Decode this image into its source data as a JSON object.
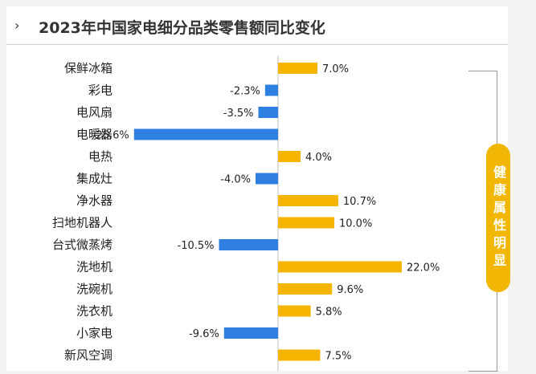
{
  "header": {
    "chevron": "›"
  },
  "badge": {
    "text": "健康属性明显",
    "color": "#f2b705"
  },
  "colors": {
    "positive": "#f4b400",
    "negative": "#2f7fe0"
  },
  "chart_data": {
    "type": "bar",
    "orientation": "horizontal",
    "title": "2023年中国家电细分品类零售额同比变化",
    "categories": [
      "保鲜冰箱",
      "彩电",
      "电风扇",
      "电暖器",
      "电热",
      "集成灶",
      "净水器",
      "扫地机器人",
      "台式微蒸烤",
      "洗地机",
      "洗碗机",
      "洗衣机",
      "小家电",
      "新风空调"
    ],
    "values": [
      7.0,
      -2.3,
      -3.5,
      -25.6,
      4.0,
      -4.0,
      10.7,
      10.0,
      -10.5,
      22.0,
      9.6,
      5.8,
      -9.6,
      7.5
    ],
    "labels": [
      "7.0%",
      "-2.3%",
      "-3.5%",
      "-25.6%",
      "4.0%",
      "-4.0%",
      "10.7%",
      "10.0%",
      "-10.5%",
      "22.0%",
      "9.6%",
      "5.8%",
      "-9.6%",
      "7.5%"
    ],
    "unit": "%",
    "grid": false
  }
}
